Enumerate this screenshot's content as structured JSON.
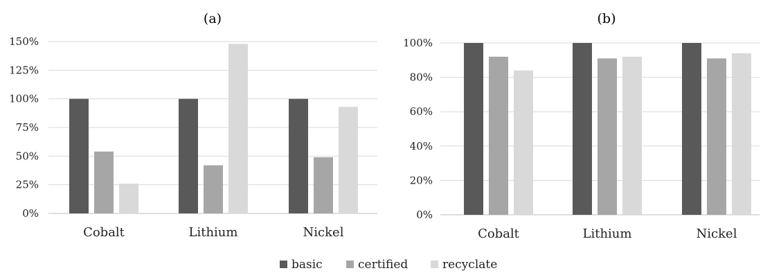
{
  "chart_data": [
    {
      "type": "bar",
      "title": "(a)",
      "categories": [
        "Cobalt",
        "Lithium",
        "Nickel"
      ],
      "series": [
        {
          "name": "basic",
          "values": [
            100,
            100,
            100
          ]
        },
        {
          "name": "certified",
          "values": [
            54,
            42,
            49
          ]
        },
        {
          "name": "recyclate",
          "values": [
            26,
            148,
            93
          ]
        }
      ],
      "ylim": [
        0,
        150
      ],
      "yticks": [
        "0%",
        "25%",
        "50%",
        "75%",
        "100%",
        "125%",
        "150%"
      ],
      "ytick_values": [
        0,
        25,
        50,
        75,
        100,
        125,
        150
      ],
      "xlabel": "",
      "ylabel": "",
      "grid": true
    },
    {
      "type": "bar",
      "title": "(b)",
      "categories": [
        "Cobalt",
        "Lithium",
        "Nickel"
      ],
      "series": [
        {
          "name": "basic",
          "values": [
            100,
            100,
            100
          ]
        },
        {
          "name": "certified",
          "values": [
            92,
            91,
            91
          ]
        },
        {
          "name": "recyclate",
          "values": [
            84,
            92,
            94
          ]
        }
      ],
      "ylim": [
        0,
        100
      ],
      "yticks": [
        "0%",
        "20%",
        "40%",
        "60%",
        "80%",
        "100%"
      ],
      "ytick_values": [
        0,
        20,
        40,
        60,
        80,
        100
      ],
      "xlabel": "",
      "ylabel": "",
      "grid": true
    }
  ],
  "legend": {
    "placement": "bottom-center",
    "entries": [
      {
        "name": "basic",
        "color": "#595959"
      },
      {
        "name": "certified",
        "color": "#a6a6a6"
      },
      {
        "name": "recyclate",
        "color": "#d9d9d9"
      }
    ]
  },
  "colors": {
    "basic": "#595959",
    "certified": "#a6a6a6",
    "recyclate": "#d9d9d9"
  }
}
